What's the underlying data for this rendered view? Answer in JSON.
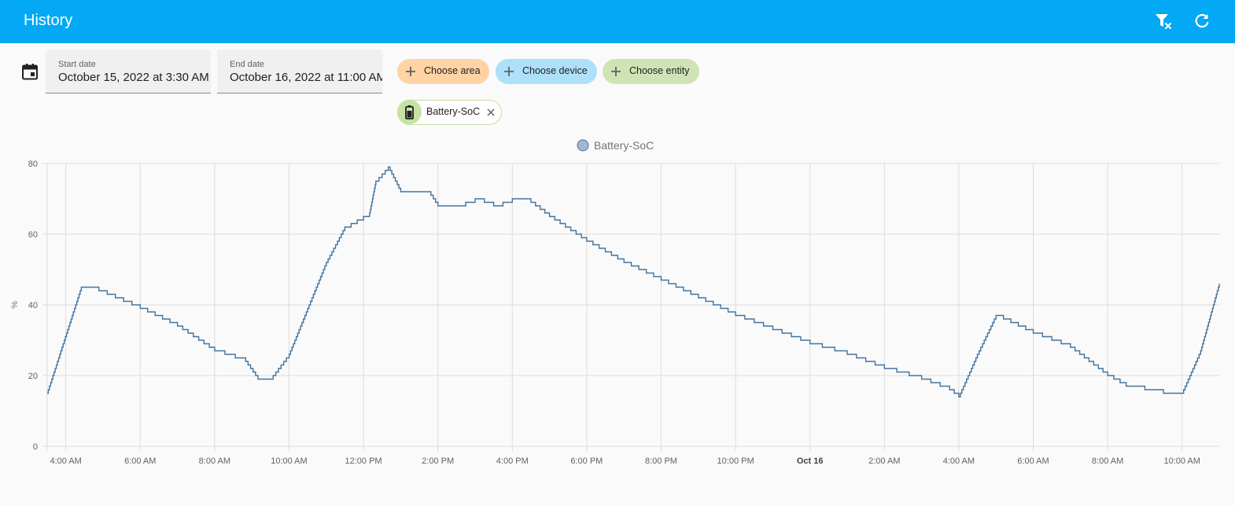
{
  "header": {
    "title": "History",
    "icons": [
      "filter-remove-icon",
      "refresh-icon"
    ]
  },
  "date_range": {
    "icon": "calendar-icon",
    "start": {
      "label": "Start date",
      "value": "October 15, 2022 at 3:30 AM"
    },
    "end": {
      "label": "End date",
      "value": "October 16, 2022 at 11:00 AM"
    }
  },
  "targets": {
    "area": {
      "label": "Choose area",
      "color": "#ffd3a3"
    },
    "device": {
      "label": "Choose device",
      "color": "#ade1f9"
    },
    "entity": {
      "label": "Choose entity",
      "color": "#cfe4b5"
    },
    "selected": [
      {
        "label": "Battery-SoC",
        "icon": "battery-icon"
      }
    ]
  },
  "chart_data": {
    "type": "line",
    "ylabel": "%",
    "ylim": [
      0,
      80
    ],
    "yticks": [
      0,
      20,
      40,
      60,
      80
    ],
    "xlim": [
      "2022-10-15 03:30",
      "2022-10-16 11:00"
    ],
    "x_ticks": [
      "4:00 AM",
      "6:00 AM",
      "8:00 AM",
      "10:00 AM",
      "12:00 PM",
      "2:00 PM",
      "4:00 PM",
      "6:00 PM",
      "8:00 PM",
      "10:00 PM",
      "Oct 16",
      "2:00 AM",
      "4:00 AM",
      "6:00 AM",
      "8:00 AM",
      "10:00 AM"
    ],
    "x_ticks_bold": [
      "Oct 16"
    ],
    "grid": true,
    "legend_position": "top-center",
    "series": [
      {
        "name": "Battery-SoC",
        "color": "#44739e",
        "legend_fill": "#a3b8cf",
        "step": true,
        "x": [
          "2022-10-15 03:30",
          "2022-10-15 04:25",
          "2022-10-15 04:40",
          "2022-10-15 05:20",
          "2022-10-15 06:00",
          "2022-10-15 07:00",
          "2022-10-15 08:00",
          "2022-10-15 08:50",
          "2022-10-15 09:10",
          "2022-10-15 09:30",
          "2022-10-15 10:00",
          "2022-10-15 11:00",
          "2022-10-15 11:30",
          "2022-10-15 11:50",
          "2022-10-15 12:10",
          "2022-10-15 12:20",
          "2022-10-15 12:40",
          "2022-10-15 13:00",
          "2022-10-15 13:45",
          "2022-10-15 14:00",
          "2022-10-15 14:30",
          "2022-10-15 15:00",
          "2022-10-15 15:30",
          "2022-10-15 16:00",
          "2022-10-15 16:30",
          "2022-10-15 17:00",
          "2022-10-15 18:00",
          "2022-10-15 19:00",
          "2022-10-15 20:00",
          "2022-10-15 21:00",
          "2022-10-15 22:00",
          "2022-10-15 23:00",
          "2022-10-16 00:00",
          "2022-10-16 01:00",
          "2022-10-16 02:00",
          "2022-10-16 03:00",
          "2022-10-16 03:45",
          "2022-10-16 04:00",
          "2022-10-16 04:30",
          "2022-10-16 05:00",
          "2022-10-16 06:00",
          "2022-10-16 07:00",
          "2022-10-16 08:00",
          "2022-10-16 08:30",
          "2022-10-16 09:00",
          "2022-10-16 09:30",
          "2022-10-16 10:00",
          "2022-10-16 10:30",
          "2022-10-16 11:00"
        ],
        "y": [
          15,
          45,
          45,
          42,
          39,
          34,
          27,
          24,
          19,
          19,
          26,
          52,
          62,
          64,
          66,
          75,
          79,
          72,
          72,
          68,
          68,
          70,
          68,
          70,
          69,
          65,
          58,
          52,
          47,
          42,
          37,
          33,
          29,
          26,
          22,
          19,
          16,
          14,
          26,
          37,
          32,
          28,
          20,
          17,
          16,
          15,
          15,
          27,
          46
        ]
      }
    ]
  }
}
